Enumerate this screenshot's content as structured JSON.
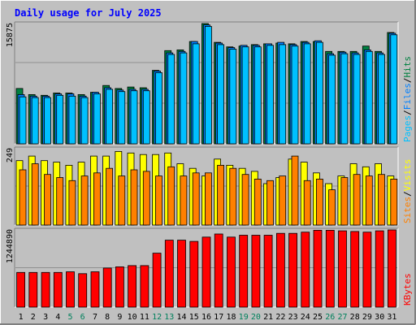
{
  "colors": {
    "background": "#c0c0c0",
    "title": "#0000ff",
    "hits": "#008040",
    "files": "#0080ff",
    "pages": "#00c0ff",
    "visits": "#ffff00",
    "sites": "#ff8000",
    "kbytes": "#ff0000",
    "weekend": "#00805c",
    "frame_light": "#ffffff",
    "frame_dark": "#808080",
    "grid": "#808080"
  },
  "chart_data": {
    "type": "bar",
    "title": "Daily usage for July 2025",
    "categories": [
      "1",
      "2",
      "3",
      "4",
      "5",
      "6",
      "7",
      "8",
      "9",
      "10",
      "11",
      "12",
      "13",
      "14",
      "15",
      "16",
      "17",
      "18",
      "19",
      "20",
      "21",
      "22",
      "23",
      "24",
      "25",
      "26",
      "27",
      "28",
      "29",
      "30",
      "31"
    ],
    "weekend_days": [
      "5",
      "6",
      "12",
      "13",
      "19",
      "20",
      "26",
      "27"
    ],
    "panels": [
      {
        "id": "hits-files-pages",
        "ymax_label": "15875",
        "ymax": 15875,
        "right_labels": [
          "Pages",
          "/",
          "Files",
          "/",
          "Hits"
        ],
        "series": [
          {
            "name": "Hits",
            "values": [
              7300,
              6500,
              6400,
              6700,
              6700,
              6500,
              6800,
              7700,
              7300,
              7500,
              7400,
              9700,
              12300,
              12400,
              13500,
              15875,
              13400,
              12800,
              12900,
              13100,
              13200,
              13300,
              13200,
              13500,
              13500,
              12200,
              12200,
              12200,
              12900,
              12200,
              14700
            ]
          },
          {
            "name": "Files",
            "values": [
              6500,
              6300,
              6300,
              6600,
              6600,
              6300,
              6800,
              7400,
              7100,
              7200,
              7200,
              9600,
              12000,
              12200,
              13500,
              15700,
              13300,
              12700,
              13000,
              13000,
              13200,
              13400,
              13100,
              13400,
              13600,
              11900,
              12100,
              12000,
              12400,
              12000,
              14600
            ]
          },
          {
            "name": "Pages",
            "values": [
              6200,
              6100,
              6100,
              6400,
              6300,
              6100,
              6600,
              7200,
              6900,
              7000,
              7000,
              9400,
              11800,
              12000,
              13200,
              15500,
              13100,
              12500,
              12800,
              12800,
              13000,
              13100,
              12900,
              13200,
              13400,
              11700,
              11900,
              11800,
              12200,
              11800,
              14400
            ]
          }
        ]
      },
      {
        "id": "visits-sites",
        "ymax_label": "249",
        "ymax": 249,
        "right_labels": [
          "Sites",
          "/",
          "Visits"
        ],
        "series": [
          {
            "name": "Visits",
            "values": [
              210,
              225,
              210,
              205,
              195,
              205,
              225,
              225,
              240,
              235,
              230,
              230,
              235,
              200,
              185,
              160,
              215,
              195,
              185,
              175,
              135,
              155,
              215,
              205,
              170,
              135,
              160,
              200,
              190,
              200,
              160
            ]
          },
          {
            "name": "Sites",
            "values": [
              180,
              200,
              165,
              155,
              145,
              160,
              170,
              185,
              160,
              180,
              175,
              160,
              190,
              160,
              170,
              170,
              195,
              185,
              165,
              150,
              145,
              160,
              225,
              145,
              150,
              115,
              155,
              165,
              160,
              165,
              150
            ]
          }
        ]
      },
      {
        "id": "kbytes",
        "ymax_label": "1244890",
        "ymax": 1244890,
        "right_labels": [
          "KBytes"
        ],
        "series": [
          {
            "name": "KBytes",
            "values": [
              560000,
              560000,
              560000,
              560000,
              570000,
              540000,
              570000,
              630000,
              650000,
              670000,
              670000,
              870000,
              1080000,
              1080000,
              1060000,
              1130000,
              1180000,
              1130000,
              1160000,
              1160000,
              1160000,
              1190000,
              1190000,
              1210000,
              1240000,
              1240000,
              1230000,
              1220000,
              1210000,
              1230000,
              1244890
            ]
          }
        ]
      }
    ]
  }
}
